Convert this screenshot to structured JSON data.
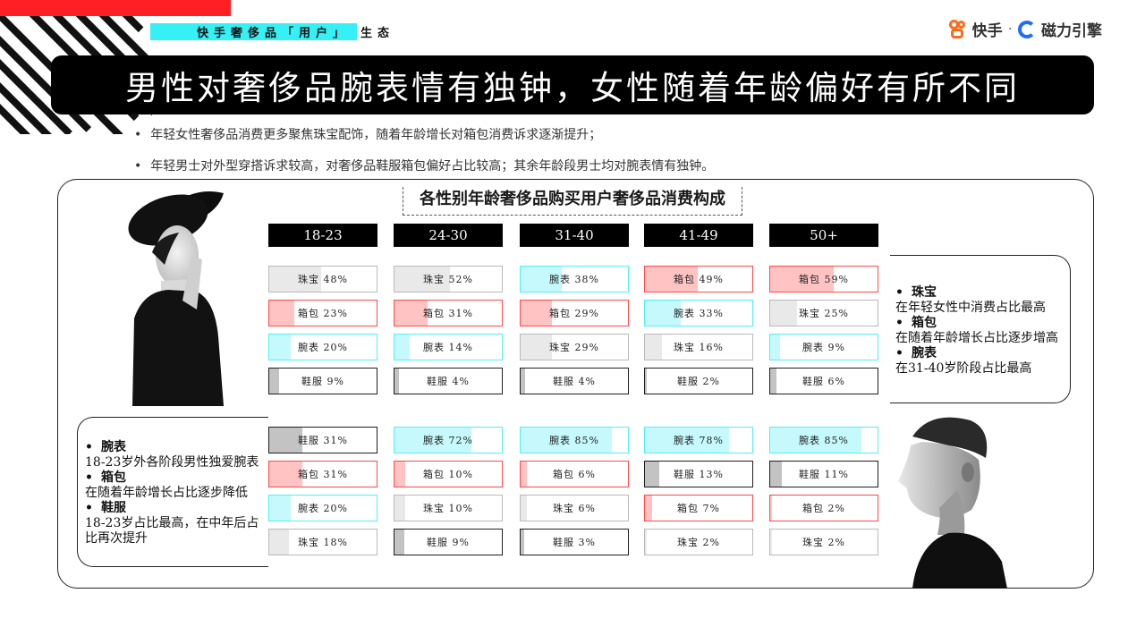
{
  "section_tag": {
    "highlight": "快手奢侈品「用户」",
    "rest": "生态"
  },
  "brand": {
    "kuaishou": "快手",
    "separator": "·",
    "engine": "磁力引擎"
  },
  "headline": "男性对奢侈品腕表情有独钟，女性随着年龄偏好有所不同",
  "bullets": [
    "年轻女性奢侈品消费更多聚焦珠宝配饰，随着年龄增长对箱包消费诉求逐渐提升；",
    "年轻男士对外型穿搭诉求较高，对奢侈品鞋服箱包偏好占比较高；其余年龄段男士均对腕表情有独钟。"
  ],
  "colors": {
    "jewelry": "#b9b9b9",
    "bag": "#ff4a4a",
    "watch": "#52f0f4",
    "shoes": "#1e1e1e",
    "accent_red": "#ff1f24",
    "accent_cyan": "#35f1f5"
  },
  "chart_data": {
    "type": "table",
    "title": "各性别年龄奢侈品购买用户奢侈品消费构成",
    "columns": [
      "18-23",
      "24-30",
      "31-40",
      "41-49",
      "50+"
    ],
    "female": [
      [
        {
          "cat": "jewelry",
          "label": "珠宝",
          "value": 48
        },
        {
          "cat": "bag",
          "label": "箱包",
          "value": 23
        },
        {
          "cat": "watch",
          "label": "腕表",
          "value": 20
        },
        {
          "cat": "shoes",
          "label": "鞋服",
          "value": 9
        }
      ],
      [
        {
          "cat": "jewelry",
          "label": "珠宝",
          "value": 52
        },
        {
          "cat": "bag",
          "label": "箱包",
          "value": 31
        },
        {
          "cat": "watch",
          "label": "腕表",
          "value": 14
        },
        {
          "cat": "shoes",
          "label": "鞋服",
          "value": 4
        }
      ],
      [
        {
          "cat": "watch",
          "label": "腕表",
          "value": 38
        },
        {
          "cat": "bag",
          "label": "箱包",
          "value": 29
        },
        {
          "cat": "jewelry",
          "label": "珠宝",
          "value": 29
        },
        {
          "cat": "shoes",
          "label": "鞋服",
          "value": 4
        }
      ],
      [
        {
          "cat": "bag",
          "label": "箱包",
          "value": 49
        },
        {
          "cat": "watch",
          "label": "腕表",
          "value": 33
        },
        {
          "cat": "jewelry",
          "label": "珠宝",
          "value": 16
        },
        {
          "cat": "shoes",
          "label": "鞋服",
          "value": 2
        }
      ],
      [
        {
          "cat": "bag",
          "label": "箱包",
          "value": 59
        },
        {
          "cat": "jewelry",
          "label": "珠宝",
          "value": 25
        },
        {
          "cat": "watch",
          "label": "腕表",
          "value": 9
        },
        {
          "cat": "shoes",
          "label": "鞋服",
          "value": 6
        }
      ]
    ],
    "male": [
      [
        {
          "cat": "shoes",
          "label": "鞋服",
          "value": 31
        },
        {
          "cat": "bag",
          "label": "箱包",
          "value": 31
        },
        {
          "cat": "watch",
          "label": "腕表",
          "value": 20
        },
        {
          "cat": "jewelry",
          "label": "珠宝",
          "value": 18
        }
      ],
      [
        {
          "cat": "watch",
          "label": "腕表",
          "value": 72
        },
        {
          "cat": "bag",
          "label": "箱包",
          "value": 10
        },
        {
          "cat": "jewelry",
          "label": "珠宝",
          "value": 10
        },
        {
          "cat": "shoes",
          "label": "鞋服",
          "value": 9
        }
      ],
      [
        {
          "cat": "watch",
          "label": "腕表",
          "value": 85
        },
        {
          "cat": "bag",
          "label": "箱包",
          "value": 6
        },
        {
          "cat": "jewelry",
          "label": "珠宝",
          "value": 6
        },
        {
          "cat": "shoes",
          "label": "鞋服",
          "value": 3
        }
      ],
      [
        {
          "cat": "watch",
          "label": "腕表",
          "value": 78
        },
        {
          "cat": "shoes",
          "label": "鞋服",
          "value": 13
        },
        {
          "cat": "bag",
          "label": "箱包",
          "value": 7
        },
        {
          "cat": "jewelry",
          "label": "珠宝",
          "value": 2
        }
      ],
      [
        {
          "cat": "watch",
          "label": "腕表",
          "value": 85
        },
        {
          "cat": "shoes",
          "label": "鞋服",
          "value": 11
        },
        {
          "cat": "bag",
          "label": "箱包",
          "value": 2
        },
        {
          "cat": "jewelry",
          "label": "珠宝",
          "value": 2
        }
      ]
    ]
  },
  "female_notes": [
    {
      "heading": "珠宝",
      "text": "在年轻女性中消费占比最高"
    },
    {
      "heading": "箱包",
      "text": "在随着年龄增长占比逐步增高"
    },
    {
      "heading": "腕表",
      "text": "在31-40岁阶段占比最高"
    }
  ],
  "male_notes": [
    {
      "heading": "腕表",
      "text": "18-23岁外各阶段男性独爱腕表"
    },
    {
      "heading": "箱包",
      "text": "在随着年龄增长占比逐步降低"
    },
    {
      "heading": "鞋服",
      "text": "18-23岁占比最高，在中年后占比再次提升"
    }
  ]
}
